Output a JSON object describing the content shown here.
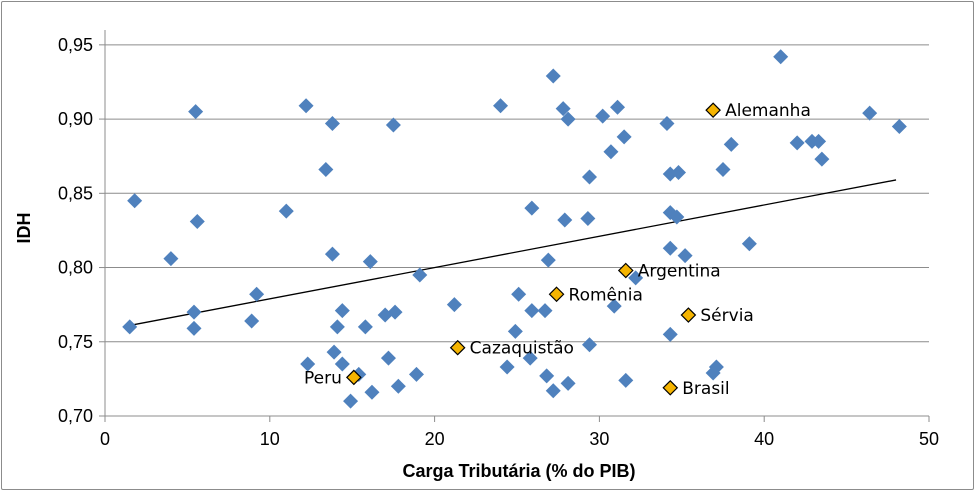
{
  "chart_data": {
    "type": "scatter",
    "title": "",
    "xlabel": "Carga Tributária (% do PIB)",
    "ylabel": "IDH",
    "xlim": [
      0,
      50
    ],
    "ylim": [
      0.7,
      0.96
    ],
    "x_ticks": [
      "0",
      "10",
      "20",
      "30",
      "40",
      "50"
    ],
    "y_ticks": [
      "0,70",
      "0,75",
      "0,80",
      "0,85",
      "0,90",
      "0,95"
    ],
    "grid": "horizontal",
    "legend": "none",
    "colors": {
      "points": "#4f81bd",
      "highlight": "#f5b400",
      "highlight_stroke": "#000000",
      "trendline": "#000000",
      "grid": "#8c8c8c"
    },
    "trendline": {
      "x": [
        1.5,
        48
      ],
      "y": [
        0.761,
        0.859
      ]
    },
    "points": [
      {
        "x": 41.0,
        "y": 0.942
      },
      {
        "x": 27.2,
        "y": 0.929
      },
      {
        "x": 5.5,
        "y": 0.905
      },
      {
        "x": 12.2,
        "y": 0.909
      },
      {
        "x": 24.0,
        "y": 0.909
      },
      {
        "x": 27.8,
        "y": 0.907
      },
      {
        "x": 31.1,
        "y": 0.908
      },
      {
        "x": 46.4,
        "y": 0.904
      },
      {
        "x": 30.2,
        "y": 0.902
      },
      {
        "x": 28.1,
        "y": 0.9
      },
      {
        "x": 13.8,
        "y": 0.897
      },
      {
        "x": 17.5,
        "y": 0.896
      },
      {
        "x": 34.1,
        "y": 0.897
      },
      {
        "x": 48.2,
        "y": 0.895
      },
      {
        "x": 31.5,
        "y": 0.888
      },
      {
        "x": 42.0,
        "y": 0.884
      },
      {
        "x": 42.9,
        "y": 0.885
      },
      {
        "x": 43.3,
        "y": 0.885
      },
      {
        "x": 38.0,
        "y": 0.883
      },
      {
        "x": 30.7,
        "y": 0.878
      },
      {
        "x": 43.5,
        "y": 0.873
      },
      {
        "x": 13.4,
        "y": 0.866
      },
      {
        "x": 37.5,
        "y": 0.866
      },
      {
        "x": 34.3,
        "y": 0.863
      },
      {
        "x": 34.8,
        "y": 0.864
      },
      {
        "x": 29.4,
        "y": 0.861
      },
      {
        "x": 1.8,
        "y": 0.845
      },
      {
        "x": 25.9,
        "y": 0.84
      },
      {
        "x": 11.0,
        "y": 0.838
      },
      {
        "x": 34.3,
        "y": 0.837
      },
      {
        "x": 34.7,
        "y": 0.834
      },
      {
        "x": 29.3,
        "y": 0.833
      },
      {
        "x": 5.6,
        "y": 0.831
      },
      {
        "x": 27.9,
        "y": 0.832
      },
      {
        "x": 39.1,
        "y": 0.816
      },
      {
        "x": 34.3,
        "y": 0.813
      },
      {
        "x": 13.8,
        "y": 0.809
      },
      {
        "x": 35.2,
        "y": 0.808
      },
      {
        "x": 4.0,
        "y": 0.806
      },
      {
        "x": 26.9,
        "y": 0.805
      },
      {
        "x": 16.1,
        "y": 0.804
      },
      {
        "x": 19.1,
        "y": 0.795
      },
      {
        "x": 32.2,
        "y": 0.793
      },
      {
        "x": 9.2,
        "y": 0.782
      },
      {
        "x": 25.1,
        "y": 0.782
      },
      {
        "x": 21.2,
        "y": 0.775
      },
      {
        "x": 30.9,
        "y": 0.774
      },
      {
        "x": 14.4,
        "y": 0.771
      },
      {
        "x": 25.9,
        "y": 0.771
      },
      {
        "x": 26.7,
        "y": 0.771
      },
      {
        "x": 17.6,
        "y": 0.77
      },
      {
        "x": 5.4,
        "y": 0.77
      },
      {
        "x": 17.0,
        "y": 0.768
      },
      {
        "x": 8.9,
        "y": 0.764
      },
      {
        "x": 1.5,
        "y": 0.76
      },
      {
        "x": 5.4,
        "y": 0.759
      },
      {
        "x": 14.1,
        "y": 0.76
      },
      {
        "x": 15.8,
        "y": 0.76
      },
      {
        "x": 24.9,
        "y": 0.757
      },
      {
        "x": 34.3,
        "y": 0.755
      },
      {
        "x": 29.4,
        "y": 0.748
      },
      {
        "x": 13.9,
        "y": 0.743
      },
      {
        "x": 17.2,
        "y": 0.739
      },
      {
        "x": 25.8,
        "y": 0.739
      },
      {
        "x": 12.3,
        "y": 0.735
      },
      {
        "x": 14.4,
        "y": 0.735
      },
      {
        "x": 24.4,
        "y": 0.733
      },
      {
        "x": 37.1,
        "y": 0.733
      },
      {
        "x": 18.9,
        "y": 0.728
      },
      {
        "x": 36.9,
        "y": 0.729
      },
      {
        "x": 15.4,
        "y": 0.728
      },
      {
        "x": 26.8,
        "y": 0.727
      },
      {
        "x": 31.6,
        "y": 0.724
      },
      {
        "x": 28.1,
        "y": 0.722
      },
      {
        "x": 17.8,
        "y": 0.72
      },
      {
        "x": 27.2,
        "y": 0.717
      },
      {
        "x": 16.2,
        "y": 0.716
      },
      {
        "x": 14.9,
        "y": 0.71
      }
    ],
    "highlighted": [
      {
        "label": "Alemanha",
        "x": 36.9,
        "y": 0.906,
        "label_side": "right"
      },
      {
        "label": "Argentina",
        "x": 31.6,
        "y": 0.798,
        "label_side": "right"
      },
      {
        "label": "Romênia",
        "x": 27.4,
        "y": 0.782,
        "label_side": "right"
      },
      {
        "label": "Sérvia",
        "x": 35.4,
        "y": 0.768,
        "label_side": "right"
      },
      {
        "label": "Cazaquistão",
        "x": 21.4,
        "y": 0.746,
        "label_side": "right"
      },
      {
        "label": "Peru",
        "x": 15.1,
        "y": 0.726,
        "label_side": "left"
      },
      {
        "label": "Brasil",
        "x": 34.3,
        "y": 0.719,
        "label_side": "right"
      }
    ]
  }
}
